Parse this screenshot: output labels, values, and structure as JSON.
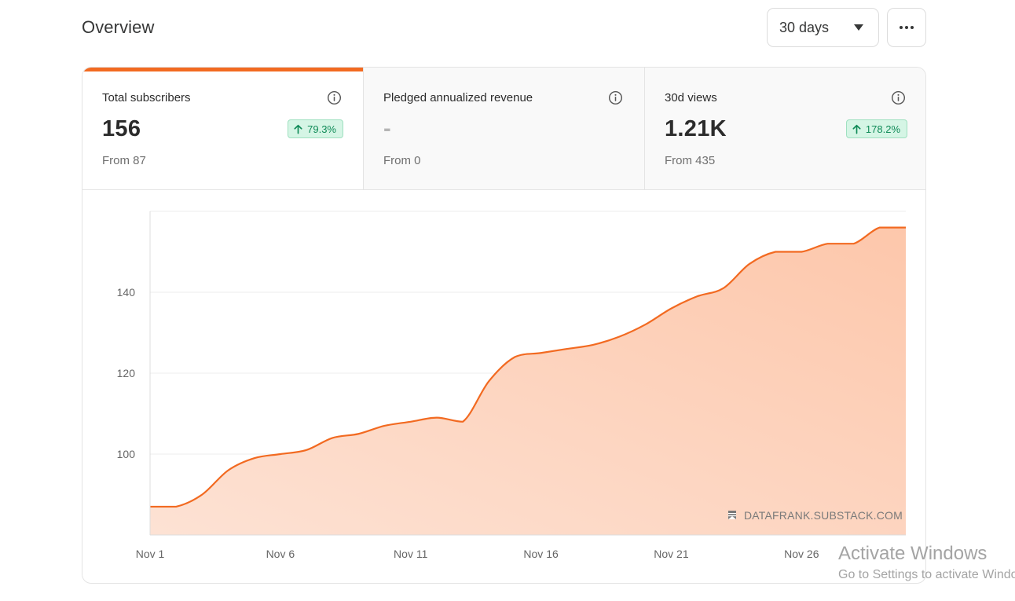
{
  "header": {
    "title": "Overview",
    "range_label": "30 days"
  },
  "stats": [
    {
      "label": "Total subscribers",
      "value": "156",
      "from": "From 87",
      "badge": "79.3%",
      "active": true
    },
    {
      "label": "Pledged annualized revenue",
      "value": "-",
      "from": "From 0",
      "badge": ""
    },
    {
      "label": "30d views",
      "value": "1.21K",
      "from": "From 435",
      "badge": "178.2%"
    }
  ],
  "colors": {
    "accent": "#f26a21",
    "badge_green": "#0f8a57",
    "badge_bg": "#d5f5e5"
  },
  "chart_data": {
    "type": "area",
    "x": [
      "Nov 1",
      "Nov 2",
      "Nov 3",
      "Nov 4",
      "Nov 5",
      "Nov 6",
      "Nov 7",
      "Nov 8",
      "Nov 9",
      "Nov 10",
      "Nov 11",
      "Nov 12",
      "Nov 13",
      "Nov 14",
      "Nov 15",
      "Nov 16",
      "Nov 17",
      "Nov 18",
      "Nov 19",
      "Nov 20",
      "Nov 21",
      "Nov 22",
      "Nov 23",
      "Nov 24",
      "Nov 25",
      "Nov 26",
      "Nov 27",
      "Nov 28",
      "Nov 29",
      "Nov 30"
    ],
    "x_tick_labels": [
      "Nov 1",
      "Nov 6",
      "Nov 11",
      "Nov 16",
      "Nov 21",
      "Nov 26"
    ],
    "series": [
      {
        "values": [
          87,
          87,
          90,
          96,
          99,
          100,
          101,
          104,
          105,
          107,
          108,
          109,
          108,
          118,
          124,
          125,
          126,
          127,
          129,
          132,
          136,
          139,
          141,
          147,
          150,
          150,
          152,
          152,
          156,
          156
        ]
      }
    ],
    "y_ticks": [
      100,
      120,
      140
    ],
    "ylim": [
      80,
      160
    ],
    "grid": true,
    "watermark": "DATAFRANK.SUBSTACK.COM"
  },
  "os_overlay": {
    "line1": "Activate Windows",
    "line2": "Go to Settings to activate Windows."
  }
}
